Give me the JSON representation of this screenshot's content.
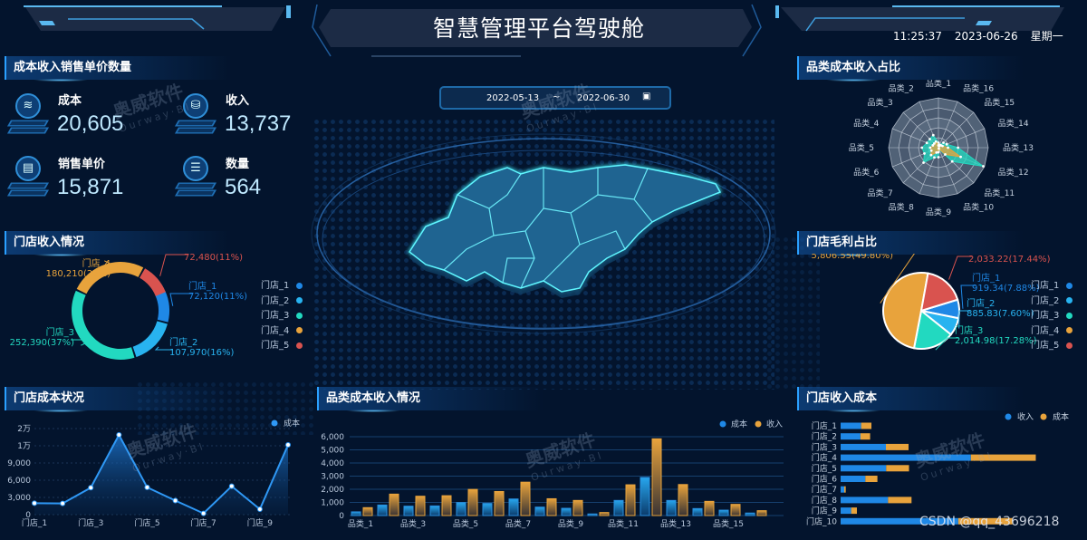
{
  "header": {
    "title": "智慧管理平台驾驶舱",
    "time": "11:25:37",
    "date": "2023-06-26",
    "weekday": "星期一"
  },
  "colors": {
    "background": "#03142d",
    "accent": "#2aa0ff",
    "cost_blue": "#1f88e6",
    "income_orange": "#e8a33c",
    "store": [
      "#1f88e6",
      "#28b3f0",
      "#22d9c0",
      "#e8a33c",
      "#d9534f"
    ]
  },
  "watermark": {
    "brand": "奥威软件",
    "sub": "Ourway·BI",
    "csdn": "CSDN @qq_43696218"
  },
  "kpi": {
    "title": "成本收入销售单价数量",
    "items": [
      {
        "label": "成本",
        "value": "20,605",
        "icon": "layers-icon"
      },
      {
        "label": "收入",
        "value": "13,737",
        "icon": "coins-icon"
      },
      {
        "label": "销售单价",
        "value": "15,871",
        "icon": "document-icon"
      },
      {
        "label": "数量",
        "value": "564",
        "icon": "server-icon"
      }
    ]
  },
  "date_range": {
    "start": "2022-05-13",
    "sep": "~",
    "end": "2022-06-30",
    "icon": "calendar-icon"
  },
  "store_income": {
    "title": "门店收入情况",
    "legend": [
      "门店_1",
      "门店_2",
      "门店_3",
      "门店_4",
      "门店_5"
    ],
    "slices": [
      {
        "name": "门店_1",
        "value": "72,120",
        "pct": 11
      },
      {
        "name": "门店_2",
        "value": "107,970",
        "pct": 16
      },
      {
        "name": "门店_3",
        "value": "252,390",
        "pct": 37
      },
      {
        "name": "门店_4",
        "value": "180,210",
        "pct": 26
      },
      {
        "name": "门店_5",
        "value": "72,480",
        "pct": 11
      }
    ]
  },
  "store_profit": {
    "title": "门店毛利占比",
    "legend": [
      "门店_1",
      "门店_2",
      "门店_3",
      "门店_4",
      "门店_5"
    ],
    "slices": [
      {
        "name": "门店_1",
        "value": "919.34",
        "pct": 7.88
      },
      {
        "name": "门店_2",
        "value": "885.83",
        "pct": 7.6
      },
      {
        "name": "门店_3",
        "value": "2,014.98",
        "pct": 17.28
      },
      {
        "name": "门店_4",
        "value": "5,806.55",
        "pct": 49.8
      },
      {
        "name": "门店_5",
        "value": "2,033.22",
        "pct": 17.44
      }
    ]
  },
  "chart_data": [
    {
      "type": "line",
      "title": "门店成本状况",
      "legend": [
        "成本"
      ],
      "categories": [
        "门店_1",
        "门店_2",
        "门店_3",
        "门店_4",
        "门店_5",
        "门店_6",
        "门店_7",
        "门店_8",
        "门店_9",
        "门店_10"
      ],
      "x_tick_labels": [
        "门店_1",
        "门店_3",
        "门店_5",
        "门店_7",
        "门店_9"
      ],
      "series": [
        {
          "name": "成本",
          "values": [
            2000,
            1950,
            4700,
            13900,
            4750,
            2450,
            220,
            4950,
            950,
            12150
          ]
        }
      ],
      "y_ticks": [
        {
          "v": 0,
          "l": "0"
        },
        {
          "v": 3000,
          "l": "3,000"
        },
        {
          "v": 6000,
          "l": "6,000"
        },
        {
          "v": 9000,
          "l": "9,000"
        },
        {
          "v": 12000,
          "l": "1万"
        },
        {
          "v": 15000,
          "l": "2万"
        }
      ],
      "ylim": [
        0,
        15000
      ]
    },
    {
      "type": "bar",
      "title": "品类成本收入情况",
      "legend": [
        "成本",
        "收入"
      ],
      "categories": [
        "品类_1",
        "品类_2",
        "品类_3",
        "品类_4",
        "品类_5",
        "品类_6",
        "品类_7",
        "品类_8",
        "品类_9",
        "品类_10",
        "品类_11",
        "品类_12",
        "品类_13",
        "品类_14",
        "品类_15",
        "品类_16"
      ],
      "x_tick_labels": [
        "品类_1",
        "品类_3",
        "品类_5",
        "品类_7",
        "品类_9",
        "品类_11",
        "品类_13",
        "品类_15"
      ],
      "series": [
        {
          "name": "成本",
          "values": [
            280,
            800,
            710,
            730,
            990,
            920,
            1260,
            640,
            550,
            120,
            1150,
            2900,
            1150,
            530,
            410,
            190
          ]
        },
        {
          "name": "收入",
          "values": [
            600,
            1630,
            1470,
            1510,
            1990,
            1830,
            2540,
            1280,
            1150,
            230,
            2340,
            5840,
            2360,
            1080,
            850,
            370
          ]
        }
      ],
      "y_ticks": [
        0,
        1000,
        2000,
        3000,
        4000,
        5000,
        6000
      ],
      "y_tick_labels": [
        "0",
        "1,000",
        "2,000",
        "3,000",
        "4,000",
        "5,000",
        "6,000"
      ],
      "ylim": [
        0,
        6000
      ]
    },
    {
      "type": "radar",
      "title": "品类成本收入占比",
      "axes": [
        "品类_1",
        "品类_2",
        "品类_3",
        "品类_4",
        "品类_5",
        "品类_6",
        "品类_7",
        "品类_8",
        "品类_9",
        "品类_10",
        "品类_11",
        "品类_12",
        "品类_13",
        "品类_14",
        "品类_15",
        "品类_16"
      ],
      "max": 6000,
      "series": [
        {
          "values": [
            600,
            1630,
            1470,
            1510,
            1990,
            1830,
            2540,
            1280,
            1150,
            230,
            2340,
            5840,
            2360,
            1080,
            850,
            370
          ],
          "color": "#22d9c0"
        },
        {
          "values": [
            280,
            800,
            710,
            730,
            990,
            920,
            1260,
            640,
            550,
            120,
            1150,
            2900,
            1150,
            530,
            410,
            190
          ],
          "color": "#e8a33c"
        }
      ]
    },
    {
      "type": "bar",
      "orientation": "horizontal",
      "stacked": true,
      "title": "门店收入成本",
      "legend": [
        "收入",
        "成本"
      ],
      "categories": [
        "门店_1",
        "门店_2",
        "门店_3",
        "门店_4",
        "门店_5",
        "门店_6",
        "门店_7",
        "门店_8",
        "门店_9",
        "门店_10"
      ],
      "series": [
        {
          "name": "收入",
          "values": [
            4400,
            4250,
            9700,
            27900,
            9750,
            5300,
            780,
            10150,
            2260,
            25200
          ]
        },
        {
          "name": "成本",
          "values": [
            2200,
            2070,
            4850,
            13900,
            4900,
            2580,
            320,
            5040,
            1230,
            11600
          ]
        }
      ]
    }
  ]
}
